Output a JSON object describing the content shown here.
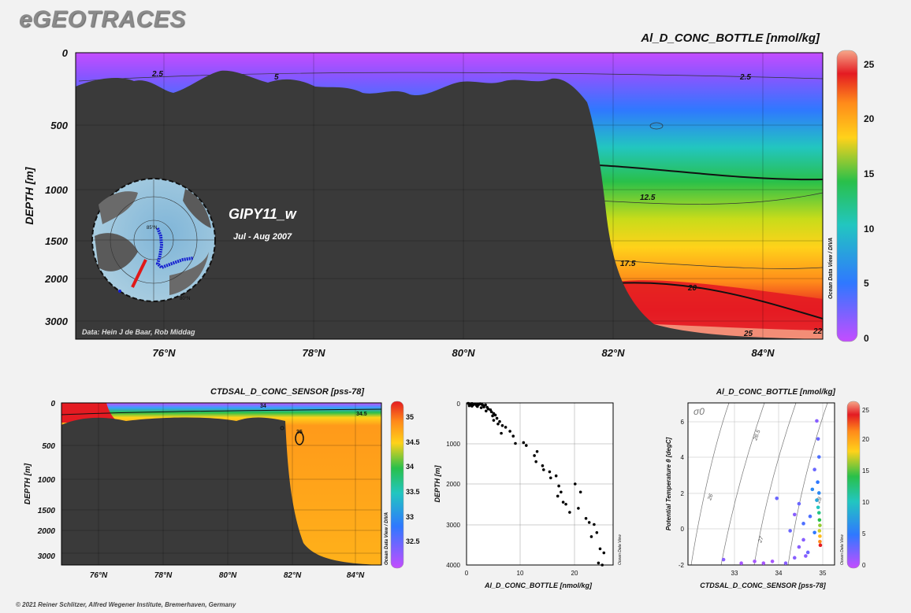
{
  "brand": "eGEOTRACES",
  "footer": "© 2021 Reiner Schlitzer, Alfred Wegener Institute, Bremerhaven, Germany",
  "colors": {
    "ramp_low": "#c44dff",
    "ramp_blue": "#2f78ff",
    "ramp_green": "#29c04a",
    "ramp_yellow": "#ffd21a",
    "ramp_orange": "#ff8a1a",
    "ramp_red": "#e41b22",
    "ramp_high": "#f6a88a",
    "bathymetry": "#3a3a3a",
    "track_blue": "#1620d0",
    "track_red": "#e01818"
  },
  "chart_data": [
    {
      "id": "main_section",
      "type": "heatmap",
      "title": "Al_D_CONC_BOTTLE [nmol/kg]",
      "section_name": "GIPY11_w",
      "period": "Jul - Aug 2007",
      "data_credit": "Data: Hein J de Baar, Rob Middag",
      "software_label": "Ocean Data View / DIVA",
      "ylabel": "DEPTH [m]",
      "x_ticks": [
        "76°N",
        "78°N",
        "80°N",
        "82°N",
        "84°N"
      ],
      "y_ticks": [
        "0",
        "500",
        "1000",
        "1500",
        "2000",
        "3000"
      ],
      "colorbar_ticks": [
        "0",
        "5",
        "10",
        "15",
        "20",
        "25"
      ],
      "colorbar_range": [
        0,
        25
      ],
      "contour_labels": [
        "2.5",
        "5",
        "2.5",
        "12.5",
        "17.5",
        "20",
        "25",
        "22"
      ],
      "inset_map_labels": [
        "85°N",
        "80°N"
      ]
    },
    {
      "id": "salinity_section",
      "type": "heatmap",
      "title": "CTDSAL_D_CONC_SENSOR [pss-78]",
      "ylabel": "DEPTH [m]",
      "software_label": "Ocean Data View / DIVA",
      "x_ticks": [
        "76°N",
        "78°N",
        "80°N",
        "82°N",
        "84°N"
      ],
      "y_ticks": [
        "0",
        "500",
        "1000",
        "1500",
        "2000",
        "3000"
      ],
      "colorbar_ticks": [
        "35",
        "34.5",
        "34",
        "33.5",
        "33",
        "32.5"
      ],
      "contour_labels": [
        "34",
        "34.5",
        "35"
      ]
    },
    {
      "id": "profile",
      "type": "scatter",
      "xlabel": "Al_D_CONC_BOTTLE [nmol/kg]",
      "ylabel": "DEPTH [m]",
      "software_label": "Ocean Data View",
      "xlim": [
        0,
        27
      ],
      "ylim": [
        4000,
        0
      ],
      "x_ticks": [
        "0",
        "10",
        "20"
      ],
      "y_ticks": [
        "0",
        "1000",
        "2000",
        "3000",
        "4000"
      ],
      "points": [
        [
          0.3,
          10
        ],
        [
          0.6,
          20
        ],
        [
          1.0,
          15
        ],
        [
          1.5,
          25
        ],
        [
          2.0,
          30
        ],
        [
          2.5,
          20
        ],
        [
          0.8,
          40
        ],
        [
          1.2,
          50
        ],
        [
          1.8,
          60
        ],
        [
          2.2,
          45
        ],
        [
          2.8,
          35
        ],
        [
          3.0,
          55
        ],
        [
          3.5,
          50
        ],
        [
          0.5,
          70
        ],
        [
          1.0,
          80
        ],
        [
          2.0,
          90
        ],
        [
          3.2,
          100
        ],
        [
          2.7,
          120
        ],
        [
          3.8,
          110
        ],
        [
          4.0,
          150
        ],
        [
          4.4,
          170
        ],
        [
          3.6,
          200
        ],
        [
          4.6,
          220
        ],
        [
          5.0,
          260
        ],
        [
          4.8,
          320
        ],
        [
          5.3,
          300
        ],
        [
          5.6,
          380
        ],
        [
          5.0,
          430
        ],
        [
          6.1,
          460
        ],
        [
          5.8,
          520
        ],
        [
          6.6,
          560
        ],
        [
          7.2,
          600
        ],
        [
          8.0,
          700
        ],
        [
          6.4,
          750
        ],
        [
          8.6,
          820
        ],
        [
          9.0,
          1000
        ],
        [
          10.5,
          980
        ],
        [
          11.0,
          1050
        ],
        [
          12.5,
          1300
        ],
        [
          13.0,
          1200
        ],
        [
          12.8,
          1450
        ],
        [
          14.0,
          1550
        ],
        [
          14.2,
          1650
        ],
        [
          15.3,
          1700
        ],
        [
          15.5,
          1850
        ],
        [
          16.5,
          1800
        ],
        [
          17.0,
          2050
        ],
        [
          17.4,
          2200
        ],
        [
          16.8,
          2300
        ],
        [
          17.8,
          2450
        ],
        [
          18.3,
          2500
        ],
        [
          19.0,
          2700
        ],
        [
          20.0,
          2000
        ],
        [
          21.0,
          2200
        ],
        [
          20.6,
          2600
        ],
        [
          22.0,
          2850
        ],
        [
          22.6,
          2950
        ],
        [
          23.5,
          3000
        ],
        [
          24.0,
          3200
        ],
        [
          23.0,
          3300
        ],
        [
          24.6,
          3600
        ],
        [
          25.3,
          3700
        ],
        [
          24.3,
          3950
        ],
        [
          25.0,
          4000
        ]
      ]
    },
    {
      "id": "ts_diagram",
      "type": "scatter",
      "title": "Al_D_CONC_BOTTLE [nmol/kg]",
      "xlabel": "CTDSAL_D_CONC_SENSOR [pss-78]",
      "ylabel": "Potential Temperature θ [degC]",
      "density_label": "σ0",
      "software_label": "Ocean Data View",
      "xlim": [
        32,
        35.3
      ],
      "ylim": [
        -2,
        7
      ],
      "x_ticks": [
        "33",
        "34",
        "35"
      ],
      "y_ticks": [
        "-2",
        "0",
        "2",
        "4",
        "6"
      ],
      "isopycnal_labels": [
        "26",
        "26.5",
        "27",
        "28"
      ],
      "colorbar_ticks": [
        "0",
        "5",
        "10",
        "15",
        "20",
        "25"
      ],
      "points": [
        [
          34.9,
          6.0,
          2
        ],
        [
          34.93,
          5.0,
          3
        ],
        [
          34.95,
          4.0,
          4
        ],
        [
          34.85,
          3.3,
          3
        ],
        [
          34.92,
          2.6,
          5
        ],
        [
          34.95,
          2.0,
          6
        ],
        [
          34.9,
          1.6,
          8
        ],
        [
          34.93,
          1.2,
          10
        ],
        [
          34.95,
          0.9,
          12
        ],
        [
          34.96,
          0.5,
          14
        ],
        [
          34.97,
          0.2,
          16
        ],
        [
          34.96,
          -0.1,
          17
        ],
        [
          34.97,
          -0.4,
          19
        ],
        [
          34.97,
          -0.7,
          21
        ],
        [
          34.98,
          -0.9,
          23
        ],
        [
          34.5,
          1.4,
          3
        ],
        [
          34.4,
          0.8,
          2
        ],
        [
          34.3,
          -0.1,
          3
        ],
        [
          34.6,
          -0.6,
          2
        ],
        [
          34.7,
          -1.3,
          3
        ],
        [
          34.4,
          -1.6,
          2
        ],
        [
          33.9,
          -1.8,
          1
        ],
        [
          33.7,
          -1.9,
          1
        ],
        [
          33.2,
          -1.9,
          1
        ],
        [
          32.8,
          -1.7,
          2
        ],
        [
          33.5,
          -1.8,
          1
        ],
        [
          34.2,
          -1.9,
          2
        ],
        [
          34.8,
          2.2,
          6
        ],
        [
          34.0,
          1.7,
          3
        ],
        [
          34.6,
          0.3,
          4
        ],
        [
          34.5,
          -1.0,
          2
        ],
        [
          34.85,
          -0.2,
          5
        ],
        [
          34.75,
          0.7,
          4
        ],
        [
          34.65,
          -1.5,
          2
        ]
      ]
    }
  ]
}
